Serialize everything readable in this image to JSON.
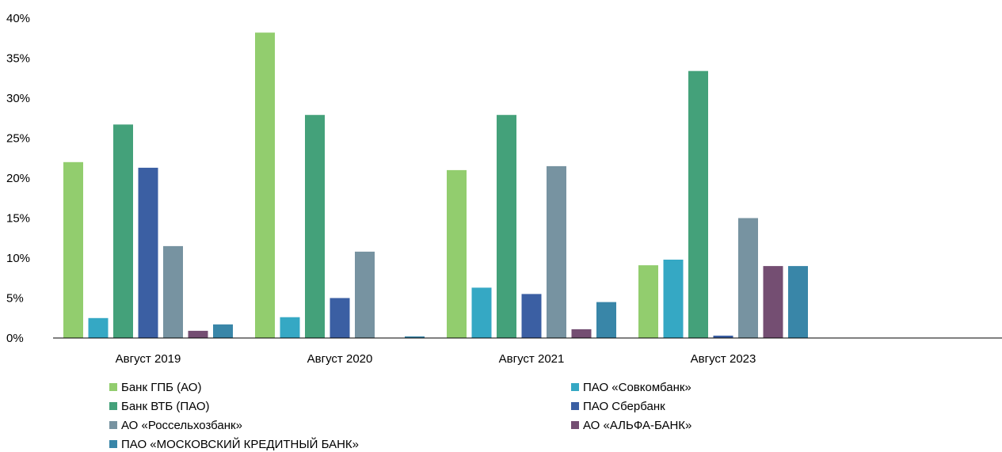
{
  "chart_data": {
    "type": "bar",
    "title": "",
    "xlabel": "",
    "ylabel": "",
    "ylim": [
      0,
      40
    ],
    "yticks": [
      "0%",
      "5%",
      "10%",
      "15%",
      "20%",
      "25%",
      "30%",
      "35%",
      "40%"
    ],
    "categories": [
      "Август 2019",
      "Август 2020",
      "Август 2021",
      "Август 2023"
    ],
    "grid": false,
    "legend_position": "bottom",
    "series": [
      {
        "name": "Банк ГПБ (АО)",
        "color": "#92CD6E",
        "values": [
          22.0,
          38.2,
          21.0,
          9.1
        ]
      },
      {
        "name": "ПАО «Совкомбанк»",
        "color": "#35A8C4",
        "values": [
          2.5,
          2.6,
          6.3,
          9.8
        ]
      },
      {
        "name": "Банк ВТБ (ПАО)",
        "color": "#44A17A",
        "values": [
          26.7,
          27.9,
          27.9,
          33.4
        ]
      },
      {
        "name": "ПАО Сбербанк",
        "color": "#3B5FA3",
        "values": [
          21.3,
          5.0,
          5.5,
          0.3
        ]
      },
      {
        "name": "АО «Россельхозбанк»",
        "color": "#7793A1",
        "values": [
          11.5,
          10.8,
          21.5,
          15.0
        ]
      },
      {
        "name": "АО «АЛЬФА-БАНК»",
        "color": "#744E72",
        "values": [
          0.9,
          0.0,
          1.1,
          9.0
        ]
      },
      {
        "name": "ПАО «МОСКОВСКИЙ КРЕДИТНЫЙ БАНК»",
        "color": "#3986A8",
        "values": [
          1.7,
          0.2,
          4.5,
          9.0
        ]
      }
    ]
  }
}
